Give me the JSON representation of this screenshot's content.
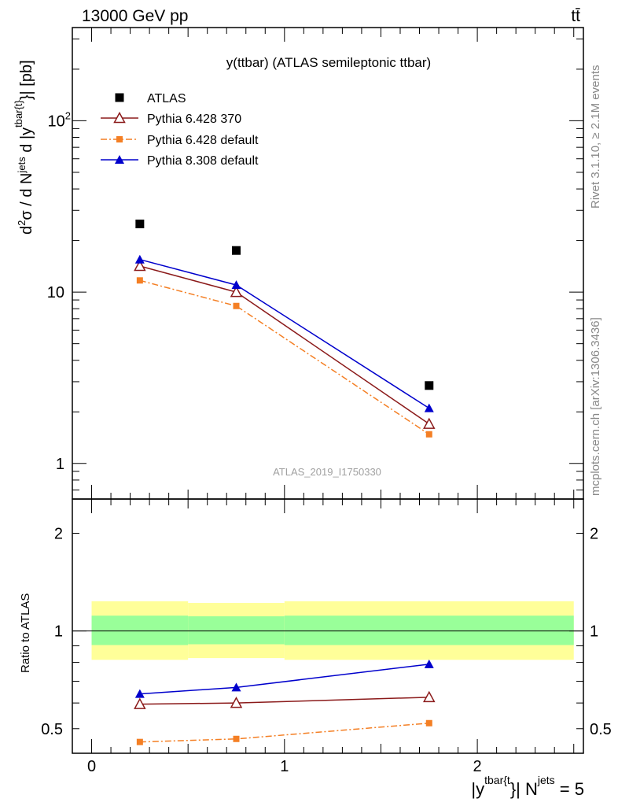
{
  "header": {
    "energy_label": "13000 GeV pp",
    "process_label": "tt̄"
  },
  "side_labels": {
    "rivet": "Rivet 3.1.10, ≥ 2.1M events",
    "mcplots": "mcplots.cern.ch [arXiv:1306.3436]"
  },
  "watermark": "ATLAS_2019_I1750330",
  "colors": {
    "atlas": "#000000",
    "py6_370": "#8b1a1a",
    "py6_default": "#f47f24",
    "py8_default": "#0000cc",
    "band_inner": "#99ff99",
    "band_outer": "#ffff99"
  },
  "chart_data": [
    {
      "type": "line",
      "title": "y(ttbar) (ATLAS semileptonic ttbar)",
      "ylabel_parts": {
        "a": "d",
        "b": "2",
        "c": "σ  /  d N",
        "d": "jets",
        "e": " d |y",
        "f": "tbar{t}",
        "g": "}| [pb]"
      },
      "yscale": "log",
      "ylim": [
        0.62,
        350
      ],
      "xlim": [
        -0.1,
        2.55
      ],
      "yticks": [
        {
          "value": 1,
          "label": "1"
        },
        {
          "value": 10,
          "label": "10"
        },
        {
          "value": 100,
          "label": "10",
          "sup": "2"
        }
      ],
      "x": [
        0.25,
        0.75,
        1.75
      ],
      "series": [
        {
          "name": "ATLAS",
          "values": [
            25,
            17.5,
            2.85
          ],
          "marker": "square",
          "line": "none"
        },
        {
          "name": "Pythia 6.428 370",
          "values": [
            14.2,
            10.0,
            1.7
          ],
          "marker": "triangle-open",
          "line": "solid"
        },
        {
          "name": "Pythia 6.428 default",
          "values": [
            11.7,
            8.3,
            1.48
          ],
          "marker": "square-small",
          "line": "dashdot"
        },
        {
          "name": "Pythia 8.308 default",
          "values": [
            15.5,
            11.0,
            2.1
          ],
          "marker": "triangle",
          "line": "solid"
        }
      ],
      "legend": "top-left"
    },
    {
      "type": "line",
      "ylabel": "Ratio to ATLAS",
      "yscale": "log",
      "ylim": [
        0.42,
        2.55
      ],
      "xlim": [
        -0.1,
        2.55
      ],
      "yticks": [
        {
          "value": 0.5,
          "label": "0.5"
        },
        {
          "value": 1,
          "label": "1"
        },
        {
          "value": 2,
          "label": "2"
        }
      ],
      "xticks": [
        {
          "value": 0,
          "label": "0"
        },
        {
          "value": 1,
          "label": "1"
        },
        {
          "value": 2,
          "label": "2"
        }
      ],
      "xlabel_parts": {
        "a": "|y",
        "b": "tbar{t",
        "c": "}| N",
        "d": "jets",
        "e": " = 5"
      },
      "bands": {
        "edges": [
          0,
          0.5,
          1.0,
          2.5
        ],
        "inner_low": [
          0.905,
          0.91,
          0.905
        ],
        "inner_high": [
          1.115,
          1.11,
          1.115
        ],
        "outer_low": [
          0.815,
          0.825,
          0.815
        ],
        "outer_high": [
          1.235,
          1.22,
          1.235
        ]
      },
      "x": [
        0.25,
        0.75,
        1.75
      ],
      "series": [
        {
          "name": "Pythia 6.428 370",
          "values": [
            0.595,
            0.6,
            0.625
          ]
        },
        {
          "name": "Pythia 6.428 default",
          "values": [
            0.455,
            0.465,
            0.52
          ]
        },
        {
          "name": "Pythia 8.308 default",
          "values": [
            0.64,
            0.67,
            0.79
          ]
        }
      ]
    }
  ]
}
